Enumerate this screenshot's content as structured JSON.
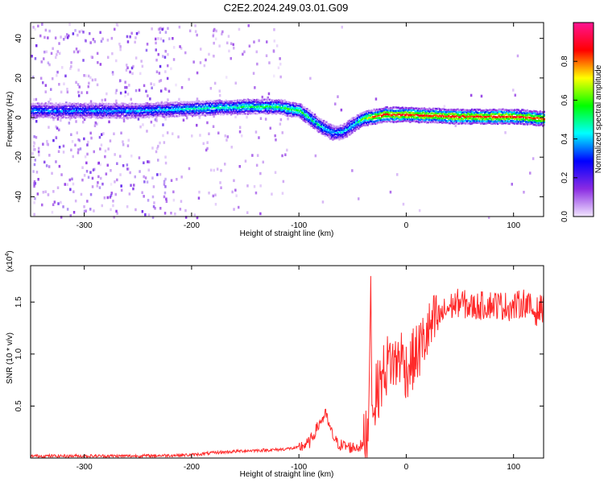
{
  "title": "C2E2.2024.249.03.01.G09",
  "chart_data": [
    {
      "type": "heatmap",
      "xlabel": "Height of straight line (km)",
      "ylabel": "Frequency (Hz)",
      "xlim": [
        -350,
        128
      ],
      "ylim": [
        -50,
        48
      ],
      "xticks": [
        -300,
        -200,
        -100,
        0,
        100
      ],
      "yticks": [
        -40,
        -20,
        0,
        20,
        40
      ],
      "colorbar": {
        "label": "Normalized spectral amplitude",
        "range": [
          0,
          1
        ],
        "ticks": [
          0.0,
          0.2,
          0.4,
          0.6,
          0.8
        ],
        "colormap": [
          "#f2e6ff",
          "#8a2be2",
          "#0000ff",
          "#00ffff",
          "#00ff00",
          "#ffff00",
          "#ff0000",
          "#ff1493"
        ]
      },
      "ridge": {
        "x": [
          -350,
          -300,
          -250,
          -200,
          -150,
          -120,
          -100,
          -90,
          -80,
          -70,
          -60,
          -50,
          -40,
          -30,
          -20,
          0,
          50,
          100,
          128
        ],
        "freq": [
          4,
          4,
          4,
          5,
          6,
          6,
          4,
          0,
          -4,
          -7,
          -7,
          -3,
          0,
          1,
          2,
          2,
          1,
          1,
          0
        ],
        "amplitude": [
          0.35,
          0.35,
          0.38,
          0.45,
          0.5,
          0.55,
          0.55,
          0.5,
          0.45,
          0.4,
          0.4,
          0.45,
          0.6,
          0.8,
          0.85,
          0.85,
          0.85,
          0.85,
          0.8
        ]
      }
    },
    {
      "type": "line",
      "xlabel": "Height of straight line (km)",
      "ylabel": "SNR (10 * v/v)",
      "yscale_label": "(x10",
      "yscale_exp": "4",
      "xlim": [
        -350,
        128
      ],
      "ylim": [
        0,
        1.85
      ],
      "xticks": [
        -300,
        -200,
        -100,
        0,
        100
      ],
      "yticks": [
        0.5,
        1.0,
        1.5
      ],
      "series": [
        {
          "color": "#ff2a2a",
          "x": [
            -350,
            -300,
            -250,
            -200,
            -180,
            -150,
            -120,
            -100,
            -90,
            -85,
            -80,
            -75,
            -70,
            -65,
            -60,
            -50,
            -40,
            -35,
            -33,
            -32,
            -30,
            -25,
            -20,
            -15,
            -10,
            -5,
            0,
            10,
            20,
            30,
            40,
            50,
            60,
            80,
            100,
            110,
            120,
            128
          ],
          "values": [
            0.02,
            0.02,
            0.02,
            0.03,
            0.05,
            0.07,
            0.08,
            0.1,
            0.15,
            0.25,
            0.35,
            0.42,
            0.25,
            0.15,
            0.12,
            0.1,
            0.12,
            0.35,
            1.75,
            0.5,
            0.55,
            0.7,
            0.85,
            0.95,
            0.9,
            1.0,
            0.85,
            1.0,
            1.2,
            1.35,
            1.45,
            1.5,
            1.45,
            1.48,
            1.45,
            1.5,
            1.4,
            1.45
          ]
        }
      ]
    }
  ]
}
